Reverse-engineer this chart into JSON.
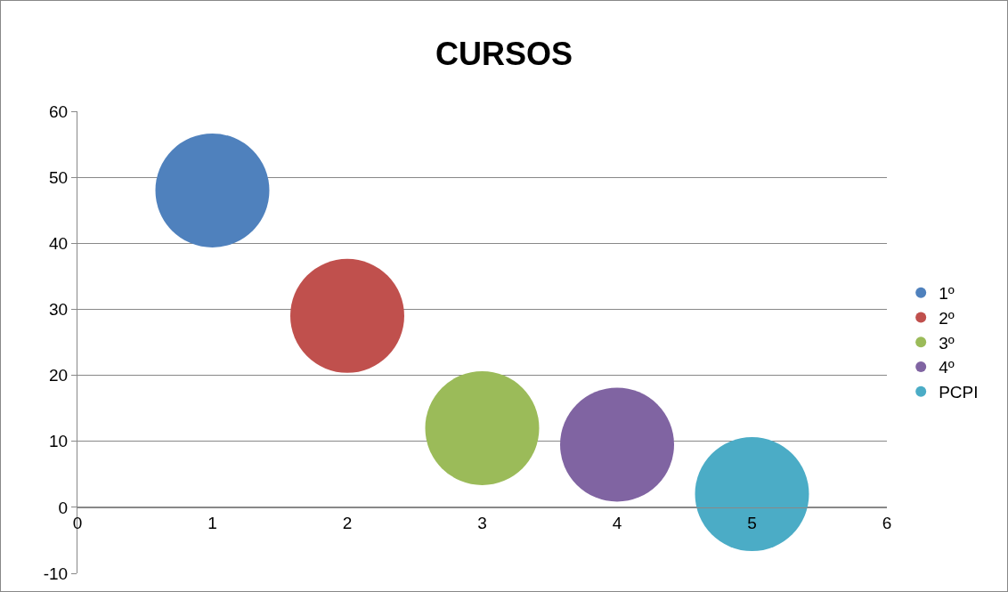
{
  "chart_data": {
    "type": "bubble",
    "title": "CURSOS",
    "series": [
      {
        "name": "1º",
        "color": "#4f81bd",
        "x": [
          1
        ],
        "values": [
          48
        ],
        "sizes": [
          1
        ]
      },
      {
        "name": "2º",
        "color": "#c0504d",
        "x": [
          2
        ],
        "values": [
          29
        ],
        "sizes": [
          1
        ]
      },
      {
        "name": "3º",
        "color": "#9bbb59",
        "x": [
          3
        ],
        "values": [
          12
        ],
        "sizes": [
          1
        ]
      },
      {
        "name": "4º",
        "color": "#8064a2",
        "x": [
          4
        ],
        "values": [
          9.5
        ],
        "sizes": [
          1
        ]
      },
      {
        "name": "PCPI",
        "color": "#4bacc6",
        "x": [
          5
        ],
        "values": [
          2
        ],
        "sizes": [
          1
        ]
      }
    ],
    "xlim": [
      0,
      6
    ],
    "xticks": [
      0,
      1,
      2,
      3,
      4,
      5,
      6
    ],
    "ylim": [
      -10,
      60
    ],
    "yticks": [
      -10,
      0,
      10,
      20,
      30,
      40,
      50,
      60
    ],
    "grid": "y",
    "legend": "right",
    "marker": "circle"
  }
}
